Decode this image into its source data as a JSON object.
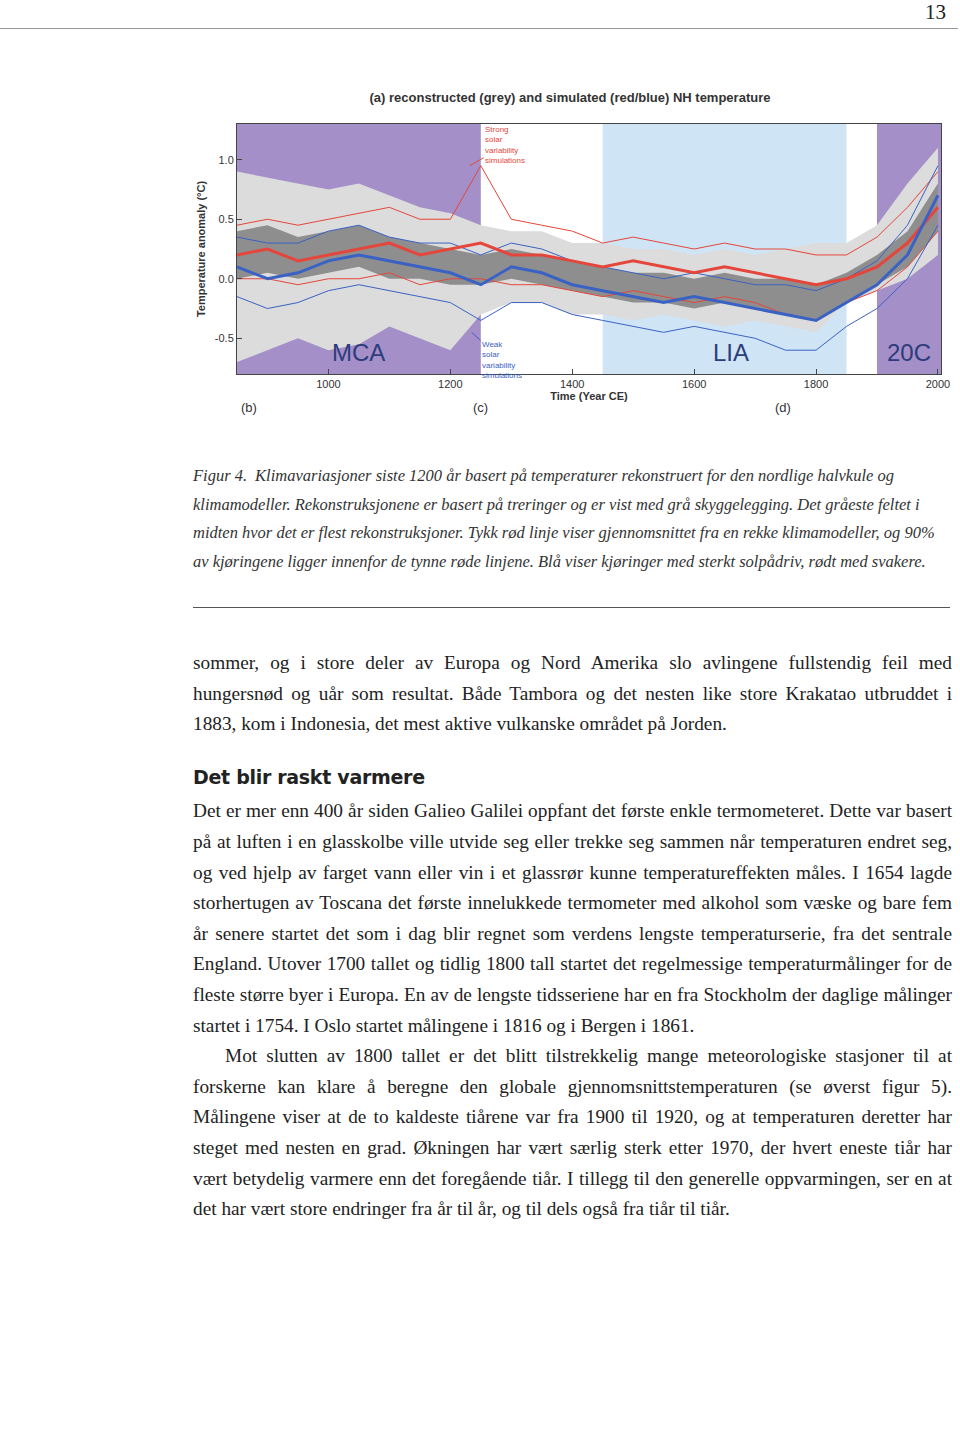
{
  "page_number": "13",
  "chart_data": {
    "type": "line",
    "title": "(a) reconstructed (grey) and simulated (red/blue) NH temperature",
    "x_label": "Time (Year CE)",
    "y_label": "Temperature anomaly (°C)",
    "x": [
      850,
      900,
      950,
      1000,
      1050,
      1100,
      1150,
      1200,
      1250,
      1300,
      1350,
      1400,
      1450,
      1500,
      1550,
      1600,
      1650,
      1700,
      1750,
      1800,
      1850,
      1900,
      1950,
      2000
    ],
    "xlim": [
      850,
      2005
    ],
    "ylim": [
      -0.8,
      1.3
    ],
    "xticks": [
      1000,
      1200,
      1400,
      1600,
      1800,
      2000
    ],
    "yticks": [
      -0.5,
      {
        "value": 0,
        "label": "0.0"
      },
      0.5,
      {
        "value": 1,
        "label": "1.0"
      }
    ],
    "bands": [
      {
        "color": "#dcdcdc",
        "upper": [
          0.9,
          0.85,
          0.8,
          0.75,
          0.8,
          0.7,
          0.6,
          0.55,
          0.45,
          0.4,
          0.4,
          0.3,
          0.3,
          0.25,
          0.25,
          0.2,
          0.25,
          0.2,
          0.25,
          0.3,
          0.3,
          0.45,
          0.8,
          1.1
        ],
        "lower": [
          -0.7,
          -0.6,
          -0.5,
          -0.6,
          -0.55,
          -0.4,
          -0.5,
          -0.6,
          -0.3,
          -0.2,
          -0.2,
          -0.3,
          -0.3,
          -0.35,
          -0.3,
          -0.35,
          -0.4,
          -0.35,
          -0.4,
          -0.45,
          -0.2,
          -0.1,
          0.0,
          0.2
        ]
      },
      {
        "color": "#8e8e8e",
        "upper": [
          0.4,
          0.45,
          0.35,
          0.4,
          0.45,
          0.35,
          0.3,
          0.25,
          0.2,
          0.25,
          0.2,
          0.15,
          0.1,
          0.05,
          0.05,
          0.0,
          0.05,
          0.0,
          0.0,
          -0.05,
          0.05,
          0.2,
          0.4,
          0.8
        ],
        "lower": [
          0.0,
          0.05,
          0.0,
          0.05,
          0.1,
          0.0,
          0.0,
          -0.05,
          -0.05,
          0.0,
          -0.05,
          -0.1,
          -0.15,
          -0.2,
          -0.2,
          -0.25,
          -0.2,
          -0.25,
          -0.3,
          -0.35,
          -0.2,
          -0.05,
          0.1,
          0.4
        ]
      }
    ],
    "series": [
      {
        "color": "#e5463b",
        "values": [
          0.2,
          0.25,
          0.15,
          0.2,
          0.25,
          0.3,
          0.2,
          0.25,
          0.3,
          0.2,
          0.2,
          0.15,
          0.1,
          0.15,
          0.1,
          0.05,
          0.1,
          0.05,
          0.0,
          -0.05,
          0.0,
          0.1,
          0.3,
          0.6
        ],
        "upper": [
          0.45,
          0.5,
          0.45,
          0.5,
          0.55,
          0.6,
          0.5,
          0.5,
          0.95,
          0.5,
          0.45,
          0.4,
          0.3,
          0.35,
          0.3,
          0.25,
          0.3,
          0.25,
          0.25,
          0.2,
          0.2,
          0.35,
          0.6,
          0.9
        ],
        "lower": [
          0.0,
          0.0,
          -0.05,
          0.0,
          0.0,
          0.05,
          -0.05,
          0.0,
          0.0,
          -0.05,
          -0.05,
          -0.1,
          -0.15,
          -0.1,
          -0.15,
          -0.2,
          -0.15,
          -0.2,
          -0.3,
          -0.35,
          -0.2,
          -0.1,
          0.1,
          0.4
        ]
      },
      {
        "color": "#3a62c4",
        "values": [
          0.1,
          0.0,
          0.05,
          0.15,
          0.2,
          0.15,
          0.1,
          0.05,
          -0.05,
          0.1,
          0.05,
          -0.05,
          -0.1,
          -0.15,
          -0.2,
          -0.15,
          -0.2,
          -0.25,
          -0.3,
          -0.35,
          -0.2,
          -0.05,
          0.2,
          0.7
        ],
        "upper": [
          0.35,
          0.3,
          0.3,
          0.4,
          0.45,
          0.35,
          0.3,
          0.3,
          0.2,
          0.3,
          0.25,
          0.15,
          0.1,
          0.05,
          0.0,
          0.05,
          0.0,
          -0.05,
          -0.05,
          -0.1,
          0.0,
          0.15,
          0.45,
          0.95
        ],
        "lower": [
          -0.15,
          -0.25,
          -0.2,
          -0.1,
          -0.05,
          -0.1,
          -0.15,
          -0.2,
          -0.35,
          -0.2,
          -0.2,
          -0.3,
          -0.35,
          -0.4,
          -0.45,
          -0.4,
          -0.45,
          -0.5,
          -0.6,
          -0.6,
          -0.4,
          -0.25,
          0.0,
          0.45
        ]
      }
    ],
    "regions": [
      {
        "label": "MCA",
        "start": 850,
        "end": 1250,
        "label_x": 1050,
        "label_y": -0.62,
        "color": "#a48fc8"
      },
      {
        "label": "LIA",
        "start": 1450,
        "end": 1850,
        "label_x": 1660,
        "label_y": -0.62,
        "color": "#cfe5f5"
      },
      {
        "label": "20C",
        "start": 1900,
        "end": 2005,
        "label_x": 1952,
        "label_y": -0.62,
        "color": "#a48fc8"
      }
    ],
    "annotations": [
      {
        "lines": [
          "Strong",
          "solar",
          "variability",
          "simulations"
        ],
        "x": 1232,
        "y": 0.95,
        "text_x": 1290,
        "text_y": 1.12,
        "color": "#e5463b"
      },
      {
        "lines": [
          "Weak",
          "solar",
          "variability",
          "simulations"
        ],
        "x": 1235,
        "y": -0.45,
        "text_x": 1285,
        "text_y": -0.68,
        "color": "#3a62c4"
      }
    ],
    "panel_labels": [
      {
        "text": "(b)",
        "x": 870
      },
      {
        "text": "(c)",
        "x": 1250
      },
      {
        "text": "(d)",
        "x": 1745
      }
    ]
  },
  "caption": {
    "label": "Figur 4.",
    "text": "Klimavariasjoner siste 1200 år basert på temperaturer rekonstruert for den nordlige halvkule og klimamodeller. Rekonstruksjonene er basert på treringer og er vist med grå skyggelegging. Det gråeste feltet i midten hvor det er flest rekonstruksjoner. Tykk rød linje viser gjennomsnittet fra en rekke klimamodeller, og 90% av kjøringene ligger innenfor de tynne røde linjene. Blå viser kjøringer med sterkt solpådriv, rødt med svakere."
  },
  "body": [
    {
      "kind": "paragraph",
      "indent": false,
      "text": "sommer, og i store deler av Europa og Nord Amerika slo avlingene fullstendig feil med hungersnød og uår som resultat. Både Tambora og det nesten like store Krakatao utbruddet i 1883, kom i Indonesia, det mest aktive vulkanske området på Jorden."
    },
    {
      "kind": "heading",
      "text": "Det blir raskt varmere"
    },
    {
      "kind": "paragraph",
      "indent": false,
      "text": "Det er mer enn 400 år siden Galieo Galilei oppfant det første enkle termometeret. Dette var basert på at luften i en glasskolbe ville utvide seg eller trekke seg sammen når temperaturen endret seg, og ved hjelp av farget vann eller vin i et glassrør kunne temperatureffekten måles. I 1654 lagde storhertugen av Toscana det første innelukkede termometer med alkohol som væske og bare fem år senere startet det som i dag blir regnet som verdens lengste temperaturserie, fra det sentrale England. Utover 1700 tallet og tidlig 1800 tall startet det regelmessige temperaturmålinger for de fleste større byer i Europa. En av de lengste tidsseriene har en fra Stockholm der daglige målinger startet i 1754. I Oslo startet målingene i 1816 og i Bergen i 1861."
    },
    {
      "kind": "paragraph",
      "indent": true,
      "text": "Mot slutten av 1800 tallet er det blitt tilstrekkelig mange meteorologiske stasjoner til at forskerne kan klare å beregne den globale gjennomsnittstemperaturen (se øverst figur 5). Målingene viser at de to kaldeste tiårene var fra 1900 til 1920, og at temperaturen deretter har steget med nesten en grad. Økningen har vært særlig sterk etter 1970, der hvert eneste tiår har vært betydelig varmere enn det foregående tiår. I tillegg til den generelle oppvarmingen, ser en at det har vært store endringer fra år til år, og til dels også fra tiår til tiår."
    }
  ]
}
